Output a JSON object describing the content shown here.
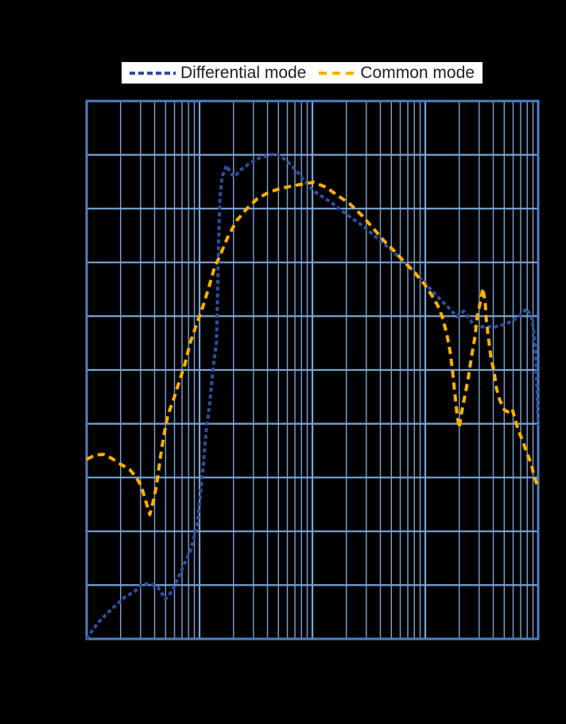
{
  "legend": {
    "items": [
      {
        "label": "Differential mode",
        "color": "#2e4f9e",
        "dash_style": "short-dash"
      },
      {
        "label": "Common mode",
        "color": "#ffb000",
        "dash_style": "long-dash"
      }
    ]
  },
  "chart_data": {
    "type": "line",
    "title": "",
    "xlabel": "",
    "ylabel": "",
    "x_axis": {
      "scale": "log",
      "decades": 4,
      "minor_ticks_per_decade": [
        2,
        3,
        4,
        5,
        6,
        7,
        8,
        9
      ],
      "tick_labels_visible": false,
      "range_log_units": [
        0,
        4
      ]
    },
    "y_axis": {
      "scale": "linear",
      "divisions": 10,
      "tick_labels_visible": false,
      "range_divisions": [
        0,
        10
      ]
    },
    "grid": {
      "on": true,
      "line_color": "#7aa5d6",
      "border_color": "#4c80c6",
      "plot_background": "#000000"
    },
    "legend_position": "top-center",
    "series": [
      {
        "name": "Differential mode",
        "color": "#2e4f9e",
        "dash": [
          5,
          3.5
        ],
        "points": [
          [
            0.0,
            0.0
          ],
          [
            0.1,
            0.3
          ],
          [
            0.22,
            0.55
          ],
          [
            0.34,
            0.78
          ],
          [
            0.43,
            0.89
          ],
          [
            0.49,
            1.02
          ],
          [
            0.57,
            1.02
          ],
          [
            0.63,
            0.96
          ],
          [
            0.7,
            0.74
          ],
          [
            0.76,
            0.9
          ],
          [
            0.83,
            1.23
          ],
          [
            0.92,
            1.64
          ],
          [
            0.98,
            2.12
          ],
          [
            1.03,
            3.15
          ],
          [
            1.06,
            3.89
          ],
          [
            1.09,
            4.38
          ],
          [
            1.12,
            5.03
          ],
          [
            1.15,
            5.52
          ],
          [
            1.16,
            6.4
          ],
          [
            1.17,
            7.44
          ],
          [
            1.18,
            8.18
          ],
          [
            1.2,
            8.59
          ],
          [
            1.24,
            8.8
          ],
          [
            1.28,
            8.65
          ],
          [
            1.31,
            8.59
          ],
          [
            1.37,
            8.73
          ],
          [
            1.45,
            8.85
          ],
          [
            1.54,
            8.95
          ],
          [
            1.63,
            9.0
          ],
          [
            1.68,
            9.02
          ],
          [
            1.73,
            8.96
          ],
          [
            1.79,
            8.85
          ],
          [
            1.86,
            8.7
          ],
          [
            1.93,
            8.51
          ],
          [
            2.01,
            8.33
          ],
          [
            2.17,
            8.11
          ],
          [
            2.31,
            7.88
          ],
          [
            2.44,
            7.69
          ],
          [
            2.54,
            7.51
          ],
          [
            2.68,
            7.26
          ],
          [
            2.82,
            7.0
          ],
          [
            2.96,
            6.7
          ],
          [
            3.1,
            6.38
          ],
          [
            3.21,
            6.15
          ],
          [
            3.28,
            5.99
          ],
          [
            3.34,
            6.09
          ],
          [
            3.39,
            5.95
          ],
          [
            3.44,
            5.81
          ],
          [
            3.53,
            5.8
          ],
          [
            3.62,
            5.8
          ],
          [
            3.72,
            5.86
          ],
          [
            3.81,
            5.96
          ],
          [
            3.9,
            6.14
          ],
          [
            3.94,
            5.99
          ],
          [
            3.96,
            5.74
          ],
          [
            3.98,
            5.22
          ],
          [
            3.99,
            4.63
          ],
          [
            4.0,
            3.96
          ]
        ]
      },
      {
        "name": "Common mode",
        "color": "#ffb000",
        "dash": [
          9,
          6
        ],
        "points": [
          [
            0.0,
            3.34
          ],
          [
            0.08,
            3.42
          ],
          [
            0.15,
            3.43
          ],
          [
            0.22,
            3.36
          ],
          [
            0.3,
            3.25
          ],
          [
            0.38,
            3.15
          ],
          [
            0.43,
            3.03
          ],
          [
            0.48,
            2.86
          ],
          [
            0.52,
            2.59
          ],
          [
            0.56,
            2.31
          ],
          [
            0.59,
            2.56
          ],
          [
            0.62,
            2.86
          ],
          [
            0.65,
            3.33
          ],
          [
            0.68,
            3.74
          ],
          [
            0.72,
            4.16
          ],
          [
            0.77,
            4.45
          ],
          [
            0.82,
            4.78
          ],
          [
            0.87,
            5.1
          ],
          [
            0.92,
            5.52
          ],
          [
            0.98,
            5.89
          ],
          [
            1.03,
            6.18
          ],
          [
            1.08,
            6.52
          ],
          [
            1.13,
            6.89
          ],
          [
            1.19,
            7.17
          ],
          [
            1.25,
            7.47
          ],
          [
            1.33,
            7.78
          ],
          [
            1.42,
            8.0
          ],
          [
            1.51,
            8.18
          ],
          [
            1.61,
            8.3
          ],
          [
            1.71,
            8.37
          ],
          [
            1.82,
            8.42
          ],
          [
            1.92,
            8.46
          ],
          [
            2.01,
            8.49
          ],
          [
            2.12,
            8.4
          ],
          [
            2.22,
            8.25
          ],
          [
            2.33,
            8.09
          ],
          [
            2.44,
            7.87
          ],
          [
            2.54,
            7.63
          ],
          [
            2.63,
            7.41
          ],
          [
            2.73,
            7.2
          ],
          [
            2.82,
            7.0
          ],
          [
            2.91,
            6.8
          ],
          [
            2.99,
            6.6
          ],
          [
            3.06,
            6.38
          ],
          [
            3.11,
            6.2
          ],
          [
            3.15,
            5.99
          ],
          [
            3.19,
            5.67
          ],
          [
            3.22,
            5.34
          ],
          [
            3.24,
            5.0
          ],
          [
            3.26,
            4.6
          ],
          [
            3.28,
            4.19
          ],
          [
            3.3,
            3.92
          ],
          [
            3.32,
            4.19
          ],
          [
            3.35,
            4.51
          ],
          [
            3.38,
            4.85
          ],
          [
            3.41,
            5.25
          ],
          [
            3.44,
            5.62
          ],
          [
            3.46,
            5.99
          ],
          [
            3.49,
            6.29
          ],
          [
            3.51,
            6.52
          ],
          [
            3.53,
            6.26
          ],
          [
            3.54,
            5.93
          ],
          [
            3.56,
            5.59
          ],
          [
            3.58,
            5.25
          ],
          [
            3.61,
            4.96
          ],
          [
            3.63,
            4.66
          ],
          [
            3.66,
            4.44
          ],
          [
            3.7,
            4.26
          ],
          [
            3.73,
            4.22
          ],
          [
            3.77,
            4.28
          ],
          [
            3.8,
            4.04
          ],
          [
            3.83,
            3.85
          ],
          [
            3.87,
            3.64
          ],
          [
            3.9,
            3.45
          ],
          [
            3.94,
            3.25
          ],
          [
            3.96,
            3.05
          ],
          [
            4.0,
            2.81
          ]
        ]
      }
    ]
  }
}
